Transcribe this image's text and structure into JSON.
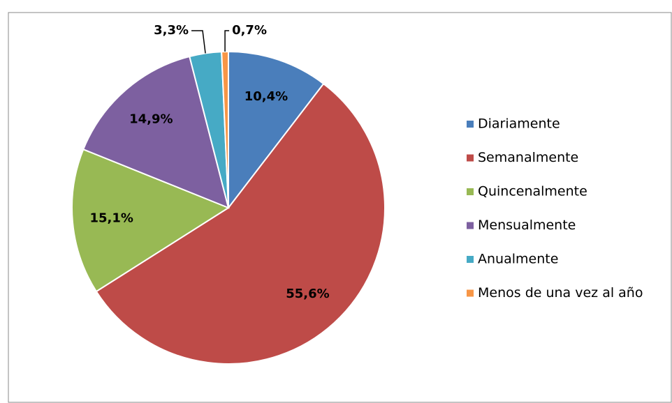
{
  "chart_data": {
    "type": "pie",
    "categories": [
      "Diariamente",
      "Semanalmente",
      "Quincenalmente",
      "Mensualmente",
      "Anualmente",
      "Menos de una vez al año"
    ],
    "values": [
      10.4,
      55.6,
      15.1,
      14.9,
      3.3,
      0.7
    ],
    "value_labels": [
      "10,4%",
      "55,6%",
      "15,1%",
      "14,9%",
      "3,3%",
      "0,7%"
    ],
    "colors": [
      "#4a7ebb",
      "#be4b48",
      "#98b954",
      "#7d60a0",
      "#46aac5",
      "#f79646"
    ],
    "legend": "right"
  }
}
